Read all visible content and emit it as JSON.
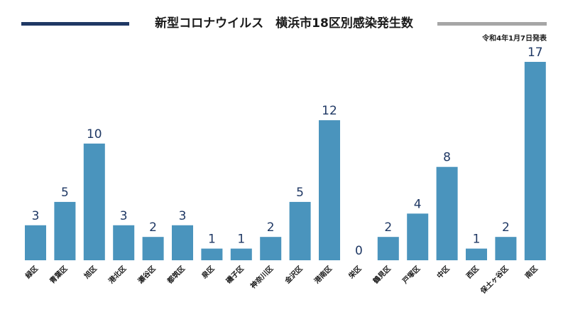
{
  "header": {
    "title": "新型コロナウイルス　横浜市18区別感染発生数",
    "date": "令和4年1月7日発表"
  },
  "colors": {
    "bar": "#4a94bd",
    "value_text": "#1f3864",
    "rule_left": "#1f3864",
    "rule_right": "#a6a6a6"
  },
  "chart_data": {
    "type": "bar",
    "title": "新型コロナウイルス　横浜市18区別感染発生数",
    "categories": [
      "緑区",
      "青葉区",
      "旭区",
      "港北区",
      "瀬谷区",
      "都筑区",
      "泉区",
      "磯子区",
      "神奈川区",
      "金沢区",
      "港南区",
      "栄区",
      "鶴見区",
      "戸塚区",
      "中区",
      "西区",
      "保土ヶ谷区",
      "南区"
    ],
    "values": [
      3,
      5,
      10,
      3,
      2,
      3,
      1,
      1,
      2,
      5,
      12,
      0,
      2,
      4,
      8,
      1,
      2,
      17
    ],
    "ylim": [
      0,
      17
    ],
    "grid": false,
    "legend": "none",
    "data_labels": true
  }
}
